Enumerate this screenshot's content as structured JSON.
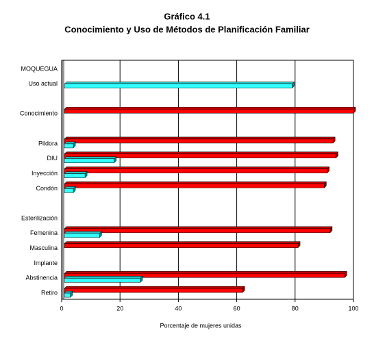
{
  "chart_data": {
    "type": "hbar",
    "title": "Gráfico 4.1",
    "subtitle": "Conocimiento y Uso de Métodos de Planificación Familiar",
    "xlabel": "Porcentaje de mujeres unidas",
    "categories": [
      "MOQUEGUA",
      "Uso actual",
      null,
      "Conocimiento",
      null,
      "Pildora",
      "DIU",
      "Inyección",
      "Condón",
      null,
      "Esterilización",
      "Femenina",
      "Masculina",
      "Implante",
      "Abstinencia",
      "Retiro"
    ],
    "series": [
      {
        "color": "#ff0000",
        "values": [
          null,
          null,
          null,
          100,
          null,
          93,
          94,
          91,
          90,
          null,
          null,
          92,
          81,
          null,
          97,
          62
        ]
      },
      {
        "color": "#33ffff",
        "values": [
          null,
          79,
          null,
          null,
          null,
          4,
          18,
          8,
          4,
          null,
          null,
          13,
          null,
          null,
          27,
          3
        ]
      }
    ],
    "xlim": [
      0,
      100
    ],
    "xticks": [
      0,
      20,
      40,
      60,
      80,
      100
    ],
    "grid": true
  }
}
